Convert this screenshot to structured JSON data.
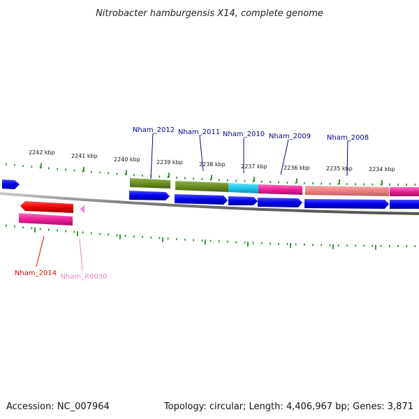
{
  "title": "Nitrobacter hamburgensis X14, complete genome",
  "footer": {
    "accession": "Accession: NC_007964",
    "summary": "Topology: circular; Length: 4,406,967 bp; Genes: 3,871"
  },
  "colors": {
    "cds_blue": "#0000ee",
    "green": "#6b8e23",
    "cyan": "#1ec8ee",
    "magenta": "#ee1e96",
    "salmon": "#ee8080",
    "red": "#ee0000",
    "pink_label": "#ee82c8",
    "navy_label": "#00008b",
    "tick_green": "#228b22",
    "backbone": "#808080"
  },
  "kbp_labels": [
    "2242 kbp",
    "2241 kbp",
    "2240 kbp",
    "2239 kbp",
    "2238 kbp",
    "2237 kbp",
    "2236 kbp",
    "2235 kbp",
    "2234 kbp"
  ],
  "gene_labels": {
    "nham_2012": "Nham_2012",
    "nham_2011": "Nham_2011",
    "nham_2010": "Nham_2010",
    "nham_2009": "Nham_2009",
    "nham_2008": "Nham_2008",
    "nham_2014": "Nham_2014",
    "nham_r0030": "Nham_R0030"
  }
}
